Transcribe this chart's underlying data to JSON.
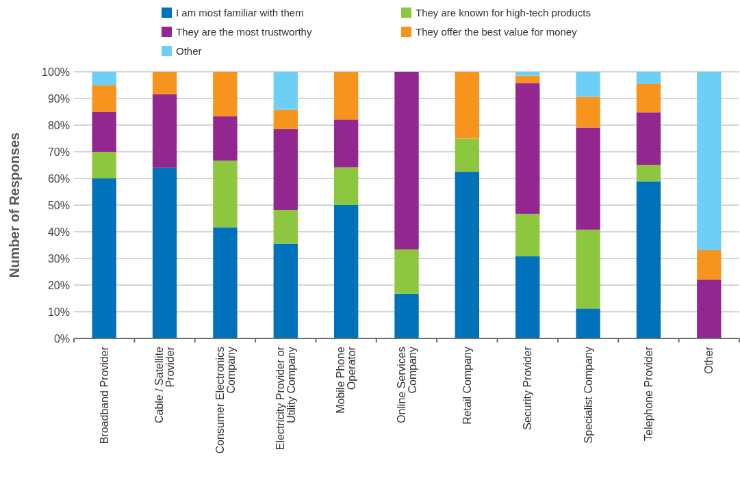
{
  "chart_data": {
    "type": "bar",
    "stacked": true,
    "ylabel": "Number of Responses",
    "legend": "top",
    "grid": "y",
    "categories": [
      "Broadband Provider",
      "Cable / Satellite\nProvider",
      "Consumer Electronics\nCompany",
      "Electricity Provider or\nUtility Company",
      "Mobile Phone\nOperator",
      "Online Services\nCompany",
      "Retail Company",
      "Security Provider",
      "Specialist Company",
      "Telephone Provider",
      "Other"
    ],
    "ylim": [
      0,
      100
    ],
    "yticks": [
      {
        "value": 0,
        "label": "0%"
      },
      {
        "value": 10,
        "label": "10%"
      },
      {
        "value": 20,
        "label": "20%"
      },
      {
        "value": 30,
        "label": "30%"
      },
      {
        "value": 40,
        "label": "40%"
      },
      {
        "value": 50,
        "label": "50%"
      },
      {
        "value": 60,
        "label": "60%"
      },
      {
        "value": 70,
        "label": "70%"
      },
      {
        "value": 80,
        "label": "80%"
      },
      {
        "value": 90,
        "label": "90%"
      },
      {
        "value": 100,
        "label": "100%"
      }
    ],
    "series": [
      {
        "name": "I am most familiar with them",
        "color": "#0071bb",
        "values": [
          60,
          64,
          41.7,
          35.5,
          50,
          16.7,
          62.5,
          30.8,
          11.2,
          58.9,
          0
        ]
      },
      {
        "name": "They are known for high-tech products",
        "color": "#8dc63f",
        "values": [
          10,
          0,
          25,
          12.7,
          14.2,
          16.7,
          12.5,
          15.9,
          29.6,
          6.2,
          0
        ]
      },
      {
        "name": "They are the most trustworthy",
        "color": "#92278f",
        "values": [
          15,
          27.6,
          16.6,
          30.3,
          17.9,
          66.6,
          0,
          49.1,
          38.3,
          19.7,
          22.1
        ]
      },
      {
        "name": "They offer the best value for money",
        "color": "#f7941d",
        "values": [
          10,
          8.4,
          16.7,
          7.2,
          17.9,
          0,
          25,
          2.8,
          11.5,
          10.6,
          11
        ]
      },
      {
        "name": "Other",
        "color": "#6dcff6",
        "values": [
          5,
          0,
          0,
          14.3,
          0,
          0,
          0,
          1.4,
          9.4,
          4.6,
          66.9
        ]
      }
    ]
  }
}
